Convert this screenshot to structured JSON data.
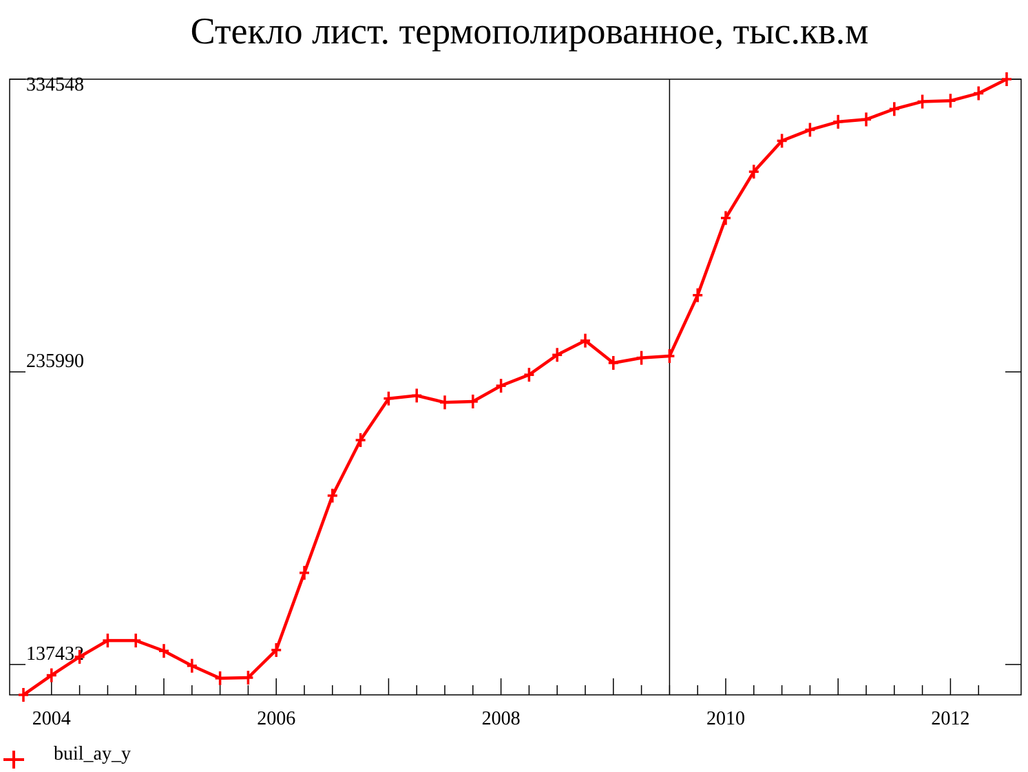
{
  "chart_data": {
    "type": "line",
    "title": "Стекло лист. термополированное, тыс.кв.м",
    "xlabel": "",
    "ylabel": "",
    "x_tick_labels": [
      "2004",
      "2006",
      "2008",
      "2010",
      "2012"
    ],
    "x_tick_values": [
      2004,
      2006,
      2008,
      2010,
      2012
    ],
    "y_tick_labels": [
      "334548",
      "235990",
      "137432"
    ],
    "y_tick_values": [
      334548,
      235990,
      137432
    ],
    "xlim": [
      2003.75,
      2012.5
    ],
    "ylim": [
      127200,
      334548
    ],
    "vertical_marker_x": 2009.5,
    "grid": false,
    "legend_position": "bottom-left",
    "series": [
      {
        "name": "buil_ay_y",
        "color": "#ff0000",
        "marker": "plus",
        "points": [
          [
            2003.75,
            127200
          ],
          [
            2004.0,
            133800
          ],
          [
            2004.25,
            140000
          ],
          [
            2004.5,
            145500
          ],
          [
            2004.75,
            145500
          ],
          [
            2005.0,
            142000
          ],
          [
            2005.25,
            137000
          ],
          [
            2005.5,
            132800
          ],
          [
            2005.75,
            133000
          ],
          [
            2006.0,
            142300
          ],
          [
            2006.25,
            168300
          ],
          [
            2006.5,
            194300
          ],
          [
            2006.75,
            213000
          ],
          [
            2007.0,
            227000
          ],
          [
            2007.25,
            228000
          ],
          [
            2007.5,
            225700
          ],
          [
            2007.75,
            226000
          ],
          [
            2008.0,
            231300
          ],
          [
            2008.25,
            235000
          ],
          [
            2008.5,
            241700
          ],
          [
            2008.75,
            246500
          ],
          [
            2009.0,
            239000
          ],
          [
            2009.25,
            240700
          ],
          [
            2009.5,
            241300
          ],
          [
            2009.75,
            261800
          ],
          [
            2010.0,
            287800
          ],
          [
            2010.25,
            303400
          ],
          [
            2010.5,
            313800
          ],
          [
            2010.75,
            317500
          ],
          [
            2011.0,
            320200
          ],
          [
            2011.25,
            321000
          ],
          [
            2011.5,
            324500
          ],
          [
            2011.75,
            327000
          ],
          [
            2012.0,
            327300
          ],
          [
            2012.25,
            329800
          ],
          [
            2012.5,
            334548
          ]
        ]
      }
    ]
  }
}
